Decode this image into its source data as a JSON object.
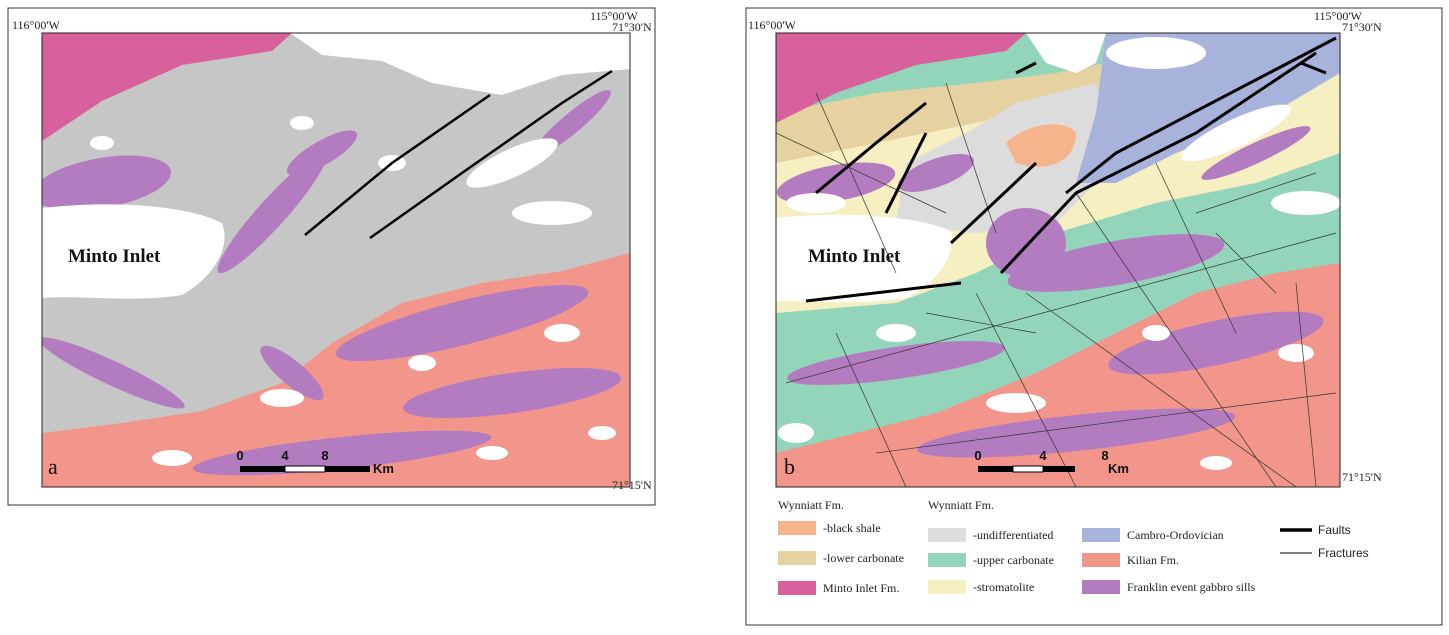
{
  "panel_a": {
    "west": "116°00'W",
    "east": "115°00'W",
    "north": "71°30'N",
    "south": "71°15'N",
    "place": "Minto Inlet",
    "label": "a",
    "scale": [
      "0",
      "4",
      "8"
    ],
    "unit": "Km"
  },
  "panel_b": {
    "west": "116°00'W",
    "east": "115°00'W",
    "north": "71°30'N",
    "south": "71°15'N",
    "place": "Minto Inlet",
    "label": "b",
    "scale": [
      "0",
      "4",
      "8"
    ],
    "unit": "Km"
  },
  "legend": {
    "columns": [
      {
        "heading": "Wynniatt Fm.",
        "items": [
          {
            "label": "-black shale",
            "color": "#f6b48c"
          },
          {
            "label": "-lower carbonate",
            "color": "#e6d2a0"
          },
          {
            "label": "Minto Inlet Fm.",
            "color": "#d8609c"
          }
        ]
      },
      {
        "heading": "Wynniatt Fm.",
        "items": [
          {
            "label": "-undifferentiated",
            "color": "#dcdcdc"
          },
          {
            "label": "-upper carbonate",
            "color": "#93d5bb"
          },
          {
            "label": "-stromatolite",
            "color": "#f6efc2"
          }
        ]
      },
      {
        "items": [
          {
            "label": "Cambro-Ordovician",
            "color": "#a8b3dc"
          },
          {
            "label": "Kilian Fm.",
            "color": "#f2958a"
          },
          {
            "label": "Franklin event gabbro sills",
            "color": "#b47cc0"
          }
        ]
      },
      {
        "items": [
          {
            "label": "Faults",
            "line": 3.5
          },
          {
            "label": "Fractures",
            "line": 1
          }
        ]
      }
    ]
  }
}
